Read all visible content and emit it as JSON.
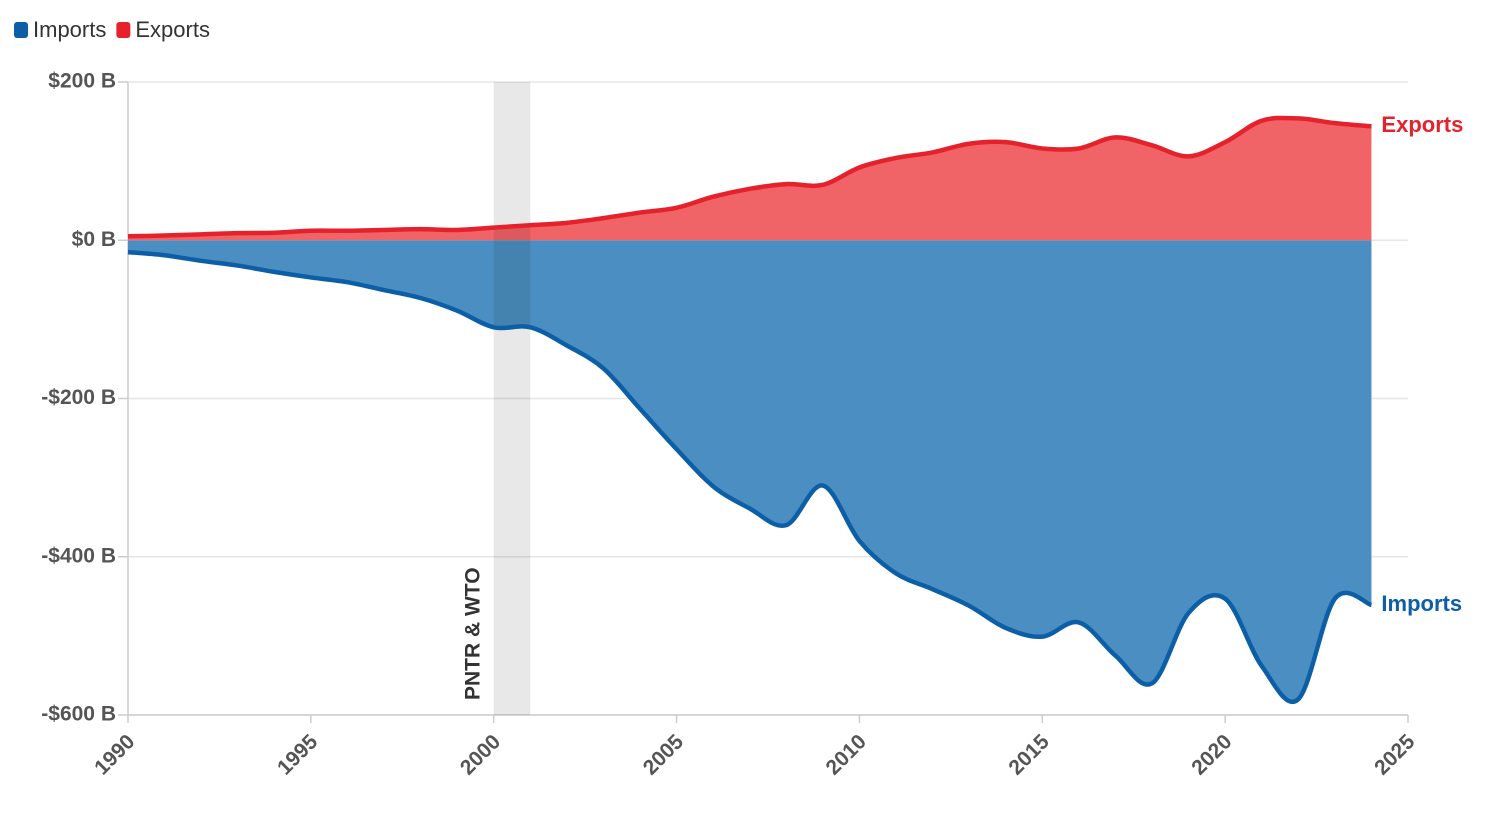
{
  "chart_data": {
    "type": "area",
    "x": [
      1990,
      1991,
      1992,
      1993,
      1994,
      1995,
      1996,
      1997,
      1998,
      1999,
      2000,
      2001,
      2002,
      2003,
      2004,
      2005,
      2006,
      2007,
      2008,
      2009,
      2010,
      2011,
      2012,
      2013,
      2014,
      2015,
      2016,
      2017,
      2018,
      2019,
      2020,
      2021,
      2022,
      2023,
      2024
    ],
    "series": [
      {
        "name": "Imports",
        "color": "#0c5fa6",
        "fill": "#4b8fc2",
        "values": [
          -15,
          -19,
          -26,
          -32,
          -40,
          -47,
          -53,
          -63,
          -73,
          -89,
          -110,
          -110,
          -133,
          -162,
          -213,
          -264,
          -311,
          -339,
          -360,
          -310,
          -380,
          -421,
          -441,
          -462,
          -490,
          -501,
          -483,
          -525,
          -560,
          -471,
          -453,
          -538,
          -580,
          -453,
          -461
        ]
      },
      {
        "name": "Exports",
        "color": "#e5222b",
        "fill": "#f06367",
        "values": [
          5,
          6,
          7.5,
          9,
          9.5,
          12,
          12,
          13,
          14,
          13,
          16,
          19,
          22,
          28,
          35,
          41,
          55,
          65,
          71,
          70,
          92,
          104,
          111,
          122,
          124,
          116,
          116,
          130,
          120,
          106,
          124,
          151,
          154,
          148,
          144
        ]
      }
    ],
    "xlim": [
      1990,
      2025
    ],
    "xticks": [
      1990,
      1995,
      2000,
      2005,
      2010,
      2015,
      2020,
      2025
    ],
    "ylim": [
      -600,
      200
    ],
    "yticks": [
      {
        "value": -600,
        "label": "-$600 B"
      },
      {
        "value": -400,
        "label": "-$400 B"
      },
      {
        "value": -200,
        "label": "-$200 B"
      },
      {
        "value": 0,
        "label": "$0 B"
      },
      {
        "value": 200,
        "label": "$200 B"
      }
    ],
    "grid": true,
    "legend": "top-left",
    "annotation": {
      "text": "PNTR & WTO",
      "x_start": 2000,
      "x_end": 2001
    }
  }
}
